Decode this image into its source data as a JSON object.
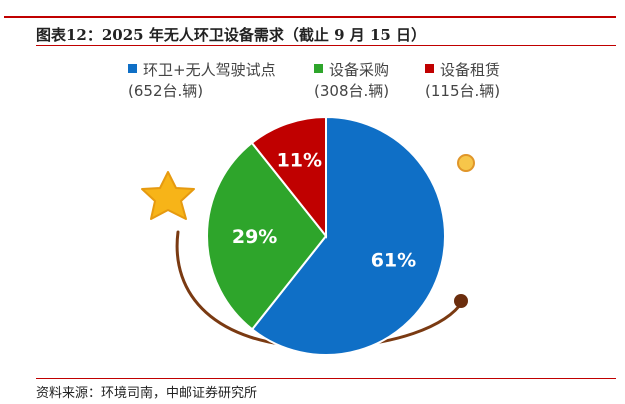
{
  "header": {
    "title": "图表12：2025 年无人环卫设备需求（截止 9 月 15 日）"
  },
  "footer": {
    "source": "资料来源：环境司南，中邮证券研究所"
  },
  "colors": {
    "accent_rule": "#c00000",
    "series_blue": "#0f6fc6",
    "series_green": "#2ea52b",
    "series_red": "#c00000",
    "star": "#f7b418",
    "arc": "#7a3a12"
  },
  "chart_data": {
    "type": "pie",
    "slices": [
      {
        "name": "环卫+无人驾驶试点",
        "detail": "(652台.辆)",
        "value": 652,
        "percent_label": "61%",
        "color": "#0f6fc6"
      },
      {
        "name": "设备采购",
        "detail": "(308台.辆)",
        "value": 308,
        "percent_label": "29%",
        "color": "#2ea52b"
      },
      {
        "name": "设备租赁",
        "detail": "(115台.辆)",
        "value": 115,
        "percent_label": "11%",
        "color": "#c00000"
      }
    ],
    "legend_position": "top"
  }
}
